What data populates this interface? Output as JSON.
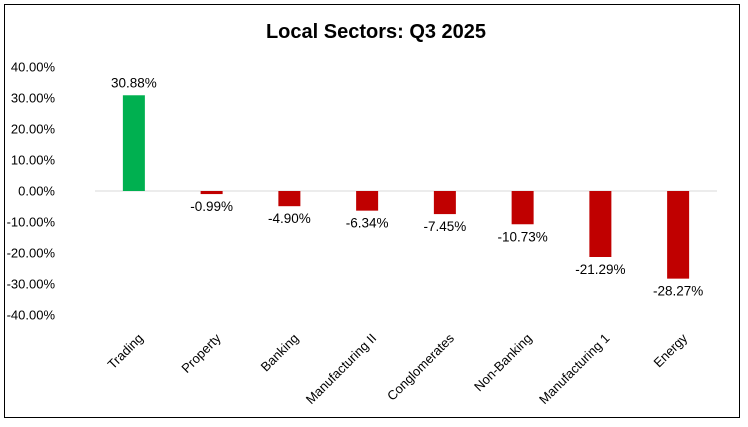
{
  "chart_data": {
    "type": "bar",
    "title": "Local Sectors: Q3 2025",
    "xlabel": "",
    "ylabel": "",
    "categories": [
      "Trading",
      "Property",
      "Banking",
      "Manufacturing II",
      "Conglomerates",
      "Non-Banking",
      "Manufacturing 1",
      "Energy"
    ],
    "values": [
      30.88,
      -0.99,
      -4.9,
      -6.34,
      -7.45,
      -10.73,
      -21.29,
      -28.27
    ],
    "data_labels": [
      "30.88%",
      "-0.99%",
      "-4.90%",
      "-6.34%",
      "-7.45%",
      "-10.73%",
      "-21.29%",
      "-28.27%"
    ],
    "ylim": [
      -40,
      40
    ],
    "yticks": [
      40,
      30,
      20,
      10,
      0,
      -10,
      -20,
      -30,
      -40
    ],
    "ytick_labels": [
      "40.00%",
      "30.00%",
      "20.00%",
      "10.00%",
      "0.00%",
      "-10.00%",
      "-20.00%",
      "-30.00%",
      "-40.00%"
    ],
    "grid": false,
    "legend": "none",
    "colors": {
      "positive": "#00b050",
      "negative": "#c00000",
      "axis": "#d9d9d9",
      "text": "#000000"
    }
  }
}
